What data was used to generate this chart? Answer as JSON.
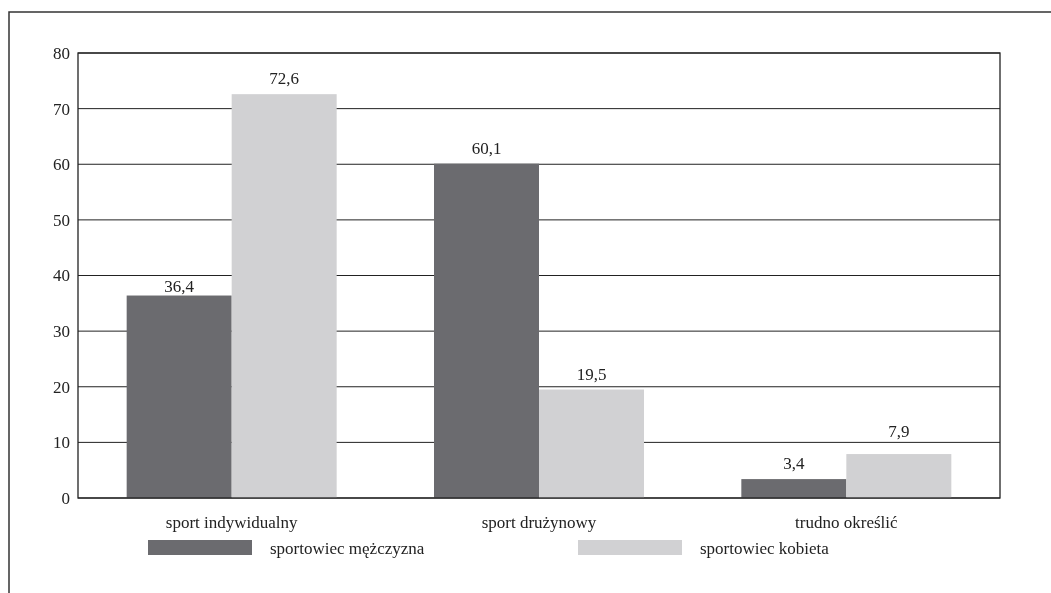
{
  "chart_data": {
    "type": "bar",
    "categories": [
      "sport indywidualny",
      "sport drużynowy",
      "trudno określić"
    ],
    "series": [
      {
        "name": "sportowiec mężczyzna",
        "color": "#6b6b6f",
        "values": [
          36.4,
          60.1,
          3.4
        ],
        "value_labels": [
          "36,4",
          "60,1",
          "3,4"
        ]
      },
      {
        "name": "sportowiec kobieta",
        "color": "#d1d1d3",
        "values": [
          72.6,
          19.5,
          7.9
        ],
        "value_labels": [
          "72,6",
          "19,5",
          "7,9"
        ]
      }
    ],
    "ylim": [
      0,
      80
    ],
    "yticks": [
      0,
      10,
      20,
      30,
      40,
      50,
      60,
      70,
      80
    ],
    "grid": "y",
    "legend": "bottom"
  }
}
